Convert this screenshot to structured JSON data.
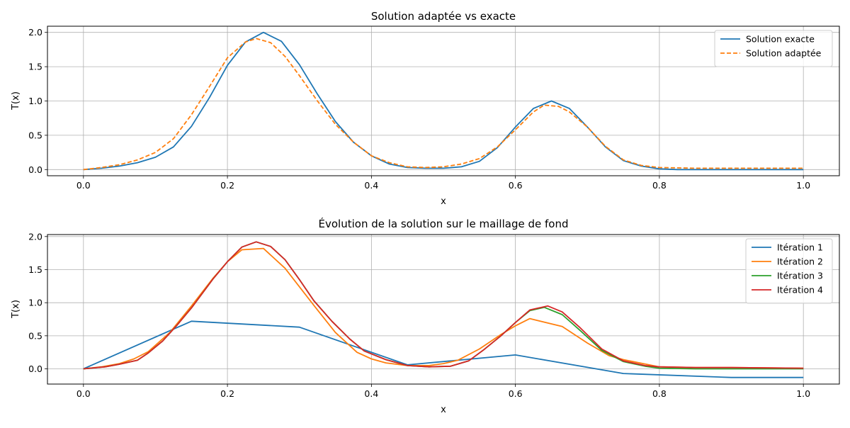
{
  "chart_data": [
    {
      "type": "line",
      "title": "Solution adaptée vs exacte",
      "xlabel": "x",
      "ylabel": "T(x)",
      "xlim": [
        -0.05,
        1.05
      ],
      "ylim": [
        -0.09,
        2.09
      ],
      "xticks": [
        "0.0",
        "0.2",
        "0.4",
        "0.6",
        "0.8",
        "1.0"
      ],
      "xtick_values": [
        0,
        0.2,
        0.4,
        0.6,
        0.8,
        1.0
      ],
      "yticks": [
        "0.0",
        "0.5",
        "1.0",
        "1.5",
        "2.0"
      ],
      "ytick_values": [
        0,
        0.5,
        1.0,
        1.5,
        2.0
      ],
      "grid": true,
      "legend": "top-right",
      "series": [
        {
          "name": "Solution exacte",
          "color": "#1f77b4",
          "dash": "solid",
          "x": [
            0,
            0.025,
            0.05,
            0.075,
            0.1,
            0.125,
            0.15,
            0.175,
            0.2,
            0.225,
            0.25,
            0.275,
            0.3,
            0.325,
            0.35,
            0.375,
            0.4,
            0.425,
            0.45,
            0.475,
            0.5,
            0.525,
            0.55,
            0.575,
            0.6,
            0.625,
            0.65,
            0.675,
            0.7,
            0.725,
            0.75,
            0.775,
            0.8,
            0.825,
            0.85,
            0.875,
            0.9,
            0.925,
            0.95,
            0.975,
            1.0
          ],
          "y": [
            0.0,
            0.02,
            0.05,
            0.1,
            0.18,
            0.33,
            0.63,
            1.05,
            1.52,
            1.86,
            2.0,
            1.87,
            1.53,
            1.1,
            0.7,
            0.4,
            0.2,
            0.08,
            0.03,
            0.02,
            0.02,
            0.04,
            0.12,
            0.32,
            0.62,
            0.89,
            1.0,
            0.89,
            0.62,
            0.33,
            0.13,
            0.05,
            0.01,
            0.0,
            0.0,
            0.0,
            0.0,
            0.0,
            0.0,
            0.0,
            0.0
          ]
        },
        {
          "name": "Solution adaptée",
          "color": "#ff7f0e",
          "dash": "dashed",
          "x": [
            0,
            0.025,
            0.05,
            0.075,
            0.1,
            0.125,
            0.15,
            0.175,
            0.2,
            0.225,
            0.24,
            0.26,
            0.28,
            0.3,
            0.325,
            0.35,
            0.375,
            0.4,
            0.425,
            0.45,
            0.475,
            0.5,
            0.525,
            0.55,
            0.575,
            0.6,
            0.625,
            0.64,
            0.66,
            0.675,
            0.7,
            0.725,
            0.75,
            0.775,
            0.8,
            0.85,
            0.9,
            0.95,
            1.0
          ],
          "y": [
            0.0,
            0.03,
            0.07,
            0.14,
            0.25,
            0.45,
            0.8,
            1.21,
            1.63,
            1.86,
            1.91,
            1.85,
            1.65,
            1.37,
            1.0,
            0.66,
            0.4,
            0.2,
            0.1,
            0.04,
            0.03,
            0.04,
            0.08,
            0.16,
            0.33,
            0.58,
            0.84,
            0.94,
            0.92,
            0.84,
            0.62,
            0.34,
            0.14,
            0.06,
            0.03,
            0.02,
            0.02,
            0.02,
            0.02
          ]
        }
      ]
    },
    {
      "type": "line",
      "title": "Évolution de la solution sur le maillage de fond",
      "xlabel": "x",
      "ylabel": "T(x)",
      "xlim": [
        -0.05,
        1.05
      ],
      "ylim": [
        -0.23,
        2.03
      ],
      "xticks": [
        "0.0",
        "0.2",
        "0.4",
        "0.6",
        "0.8",
        "1.0"
      ],
      "xtick_values": [
        0,
        0.2,
        0.4,
        0.6,
        0.8,
        1.0
      ],
      "yticks": [
        "0.0",
        "0.5",
        "1.0",
        "1.5",
        "2.0"
      ],
      "ytick_values": [
        0,
        0.5,
        1.0,
        1.5,
        2.0
      ],
      "grid": true,
      "legend": "top-right",
      "series": [
        {
          "name": "Itération 1",
          "color": "#1f77b4",
          "x": [
            0,
            0.15,
            0.3,
            0.45,
            0.6,
            0.75,
            0.9,
            1.0
          ],
          "y": [
            0.0,
            0.72,
            0.63,
            0.06,
            0.21,
            -0.07,
            -0.13,
            -0.13
          ]
        },
        {
          "name": "Itération 2",
          "color": "#ff7f0e",
          "x": [
            0,
            0.025,
            0.05,
            0.07,
            0.09,
            0.12,
            0.15,
            0.18,
            0.2,
            0.22,
            0.25,
            0.28,
            0.32,
            0.35,
            0.38,
            0.4,
            0.42,
            0.45,
            0.48,
            0.5,
            0.52,
            0.55,
            0.58,
            0.6,
            0.62,
            0.665,
            0.7,
            0.73,
            0.75,
            0.8,
            0.85,
            0.9,
            1.0
          ],
          "y": [
            0.0,
            0.03,
            0.08,
            0.15,
            0.26,
            0.55,
            0.95,
            1.37,
            1.62,
            1.8,
            1.82,
            1.52,
            0.96,
            0.55,
            0.25,
            0.15,
            0.09,
            0.05,
            0.05,
            0.08,
            0.13,
            0.3,
            0.52,
            0.65,
            0.76,
            0.64,
            0.39,
            0.2,
            0.14,
            0.03,
            0.02,
            0.02,
            0.01
          ]
        },
        {
          "name": "Itération 3",
          "color": "#2ca02c",
          "x": [
            0,
            0.03,
            0.05,
            0.075,
            0.09,
            0.11,
            0.13,
            0.15,
            0.18,
            0.2,
            0.22,
            0.24,
            0.26,
            0.28,
            0.3,
            0.32,
            0.345,
            0.37,
            0.39,
            0.42,
            0.45,
            0.48,
            0.51,
            0.535,
            0.555,
            0.58,
            0.6,
            0.62,
            0.64,
            0.665,
            0.69,
            0.72,
            0.75,
            0.78,
            0.8,
            0.85,
            0.9,
            1.0
          ],
          "y": [
            0.0,
            0.03,
            0.07,
            0.13,
            0.24,
            0.42,
            0.66,
            0.92,
            1.36,
            1.62,
            1.84,
            1.92,
            1.85,
            1.65,
            1.35,
            1.03,
            0.72,
            0.45,
            0.27,
            0.14,
            0.05,
            0.03,
            0.04,
            0.12,
            0.28,
            0.5,
            0.7,
            0.88,
            0.93,
            0.82,
            0.58,
            0.28,
            0.11,
            0.04,
            0.01,
            0.0,
            0.0,
            0.0
          ]
        },
        {
          "name": "Itération 4",
          "color": "#d62728",
          "x": [
            0,
            0.03,
            0.05,
            0.075,
            0.09,
            0.11,
            0.13,
            0.15,
            0.18,
            0.2,
            0.22,
            0.24,
            0.26,
            0.28,
            0.3,
            0.32,
            0.345,
            0.37,
            0.39,
            0.42,
            0.45,
            0.48,
            0.51,
            0.535,
            0.555,
            0.58,
            0.6,
            0.62,
            0.645,
            0.665,
            0.69,
            0.72,
            0.75,
            0.78,
            0.8,
            0.85,
            0.9,
            1.0
          ],
          "y": [
            0.0,
            0.03,
            0.07,
            0.13,
            0.24,
            0.42,
            0.66,
            0.92,
            1.36,
            1.62,
            1.84,
            1.92,
            1.85,
            1.65,
            1.35,
            1.03,
            0.72,
            0.45,
            0.27,
            0.14,
            0.05,
            0.03,
            0.04,
            0.12,
            0.28,
            0.5,
            0.7,
            0.89,
            0.95,
            0.86,
            0.62,
            0.3,
            0.12,
            0.05,
            0.03,
            0.02,
            0.02,
            0.01
          ]
        }
      ]
    }
  ]
}
